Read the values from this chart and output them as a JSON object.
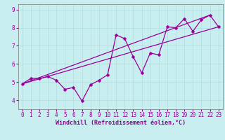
{
  "xlabel": "Windchill (Refroidissement éolien,°C)",
  "bg_color": "#c8eef0",
  "line_color": "#990099",
  "grid_color": "#b0dede",
  "xlim": [
    -0.5,
    23.5
  ],
  "ylim": [
    3.5,
    9.3
  ],
  "yticks": [
    4,
    5,
    6,
    7,
    8,
    9
  ],
  "xticks": [
    0,
    1,
    2,
    3,
    4,
    5,
    6,
    7,
    8,
    9,
    10,
    11,
    12,
    13,
    14,
    15,
    16,
    17,
    18,
    19,
    20,
    21,
    22,
    23
  ],
  "zigzag": [
    4.9,
    5.2,
    5.2,
    5.3,
    5.1,
    4.6,
    4.7,
    3.95,
    4.85,
    5.1,
    5.4,
    7.6,
    7.4,
    6.4,
    5.5,
    6.6,
    6.5,
    8.05,
    8.0,
    8.5,
    7.8,
    8.45,
    8.7,
    8.05
  ],
  "line1": [
    [
      0,
      4.9
    ],
    [
      23,
      8.05
    ]
  ],
  "line2": [
    [
      0,
      4.9
    ],
    [
      22,
      8.7
    ]
  ],
  "marker_size": 2.5,
  "line_width": 0.9,
  "font_size_ticks": 5.5,
  "font_size_xlabel": 6.0,
  "fig_width": 3.2,
  "fig_height": 2.0,
  "dpi": 100
}
